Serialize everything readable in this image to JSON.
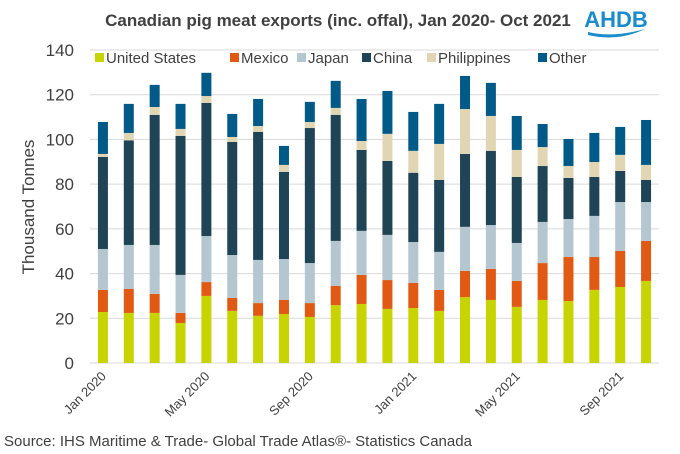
{
  "chart_data": {
    "type": "bar",
    "stacked": true,
    "title": "Canadian pig meat exports (inc. offal), Jan 2020- Oct 2021",
    "xlabel": "",
    "ylabel": "Thousand Tonnes",
    "ylim": [
      0,
      140
    ],
    "yticks": [
      0,
      20,
      40,
      60,
      80,
      100,
      120,
      140
    ],
    "grid": true,
    "legend_position": "top",
    "categories": [
      "Jan 2020",
      "Feb 2020",
      "Mar 2020",
      "Apr 2020",
      "May 2020",
      "Jun 2020",
      "Jul 2020",
      "Aug 2020",
      "Sep 2020",
      "Oct 2020",
      "Nov 2020",
      "Dec 2020",
      "Jan 2021",
      "Feb 2021",
      "Mar 2021",
      "Apr 2021",
      "May 2021",
      "Jun 2021",
      "Jul 2021",
      "Aug 2021",
      "Sep 2021",
      "Oct 2021"
    ],
    "xtick_labels": [
      {
        "index": 0,
        "label": "Jan 2020"
      },
      {
        "index": 4,
        "label": "May 2020"
      },
      {
        "index": 8,
        "label": "Sep 2020"
      },
      {
        "index": 12,
        "label": "Jan 2021"
      },
      {
        "index": 16,
        "label": "May 2021"
      },
      {
        "index": 20,
        "label": "Sep 2021"
      }
    ],
    "series": [
      {
        "name": "United States",
        "color": "#c8d400",
        "values": [
          22.8,
          22.4,
          22.4,
          17.9,
          30.0,
          23.3,
          21.1,
          21.9,
          20.6,
          25.9,
          26.4,
          24.2,
          24.6,
          23.3,
          29.5,
          28.2,
          25.1,
          28.2,
          27.7,
          32.7,
          34.0,
          36.7
        ]
      },
      {
        "name": "Mexico",
        "color": "#e05a14",
        "values": [
          9.9,
          10.7,
          8.5,
          4.5,
          6.2,
          5.8,
          5.7,
          6.3,
          6.2,
          8.6,
          13.0,
          12.9,
          11.2,
          9.4,
          11.7,
          13.9,
          11.6,
          16.5,
          19.7,
          14.7,
          16.1,
          17.9
        ]
      },
      {
        "name": "Japan",
        "color": "#b4c6cf",
        "values": [
          18.3,
          19.7,
          21.9,
          17.0,
          20.6,
          19.2,
          19.3,
          18.3,
          17.9,
          20.1,
          19.7,
          20.2,
          18.3,
          17.0,
          19.7,
          19.6,
          17.0,
          18.4,
          17.0,
          18.4,
          21.9,
          17.4
        ]
      },
      {
        "name": "China",
        "color": "#1f4455",
        "values": [
          41.2,
          46.8,
          58.2,
          62.2,
          59.5,
          50.6,
          57.3,
          39.0,
          60.4,
          56.4,
          36.2,
          33.1,
          31.0,
          32.2,
          32.6,
          33.2,
          29.5,
          25.0,
          18.4,
          17.4,
          13.9,
          9.9
        ]
      },
      {
        "name": "Philippines",
        "color": "#e0d6b4",
        "values": [
          1.3,
          3.3,
          3.5,
          3.1,
          3.1,
          2.2,
          2.6,
          3.1,
          2.7,
          3.1,
          4.0,
          12.1,
          9.8,
          16.1,
          20.1,
          15.6,
          12.1,
          8.5,
          5.3,
          6.7,
          7.2,
          6.7
        ]
      },
      {
        "name": "Other",
        "color": "#005a87",
        "values": [
          14.3,
          13.0,
          9.9,
          11.2,
          10.4,
          10.3,
          12.1,
          8.5,
          9.0,
          12.1,
          18.8,
          19.2,
          17.4,
          17.9,
          14.8,
          14.8,
          15.2,
          10.3,
          12.1,
          13.0,
          12.5,
          20.1
        ]
      }
    ]
  },
  "source": "Source: IHS Maritime & Trade- Global Trade Atlas®- Statistics Canada",
  "logo": {
    "text": "AHDB",
    "color": "#1a8ccc"
  },
  "colors": {
    "text": "#404040",
    "grid": "#d9d9d9"
  }
}
